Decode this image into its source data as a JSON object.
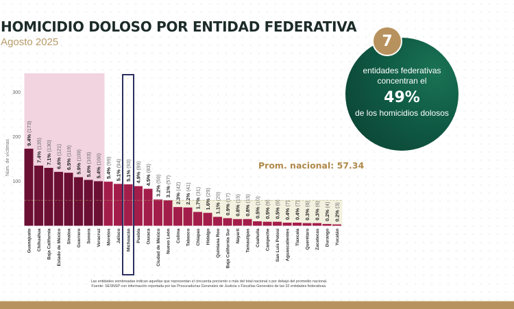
{
  "header": {
    "title": "HOMICIDIO DOLOSO POR ENTIDAD FEDERATIVA",
    "subtitle": "Agosto 2025"
  },
  "callout": {
    "count": "7",
    "line1": "entidades federativas",
    "line2": "concentran el",
    "percent": "49%",
    "line3": "de los homicidios dolosos"
  },
  "average_label": "Prom. nacional: 57.34",
  "footnotes": {
    "note": "Las entidades sombreadas indican aquellas que representan el cincuenta porciento o más del total nacional o por debajo del promedio nacional.",
    "source": "Fuente: SESNSP con información reportada por las Procuradurías Generales de Justicia o Fiscalías Generales de las 32 entidades federativas."
  },
  "colors": {
    "top_bar": "#6b0f33",
    "other_bar": "#a31d4b",
    "highlight_top": "#f2d3e0",
    "highlight_below_avg": "#f3f1df",
    "selected_outline": "#2a2f5e",
    "accent_gold": "#b8925e",
    "circle_green": "#0f5a44"
  },
  "chart_data": {
    "type": "bar",
    "title": "HOMICIDIO DOLOSO POR ENTIDAD FEDERATIVA",
    "subtitle": "Agosto 2025",
    "xlabel": "",
    "ylabel": "Núm. de víctimas",
    "ylim": [
      0,
      350
    ],
    "yticks": [
      100,
      200,
      300
    ],
    "average": 57.34,
    "average_label": "Prom. nacional: 57.34",
    "highlighted_entity": "Michoacán",
    "top_group_count": 8,
    "categories": [
      "Guanajuato",
      "Chihuahua",
      "Baja California",
      "Estado de México",
      "Sinaloa",
      "Guerrero",
      "Sonora",
      "Veracruz",
      "Morelos",
      "Jalisco",
      "Michoacán",
      "Puebla",
      "Oaxaca",
      "Ciudad de México",
      "Nuevo León",
      "Colima",
      "Tabasco",
      "Chiapas",
      "Hidalgo",
      "Quintana Roo",
      "Baja California Sur",
      "Nayarit",
      "Tamaulipas",
      "Coahuila",
      "Campeche",
      "San Luis Potosí",
      "Aguascalientes",
      "Tlaxcala",
      "Querétaro",
      "Zacatecas",
      "Durango",
      "Yucatán"
    ],
    "values": [
      173,
      135,
      130,
      121,
      119,
      109,
      103,
      100,
      99,
      94,
      93,
      89,
      83,
      59,
      57,
      42,
      41,
      31,
      29,
      20,
      17,
      15,
      15,
      10,
      9,
      9,
      7,
      7,
      6,
      6,
      4,
      3
    ],
    "percents": [
      "9.4%",
      "7.4%",
      "7.1%",
      "6.6%",
      "6.5%",
      "5.9%",
      "5.6%",
      "5.4%",
      "5.4%",
      "5.1%",
      "5.1%",
      "4.9%",
      "4.5%",
      "3.2%",
      "3.1%",
      "2.3%",
      "2.2%",
      "1.7%",
      "1.6%",
      "1.1%",
      "0.9%",
      "0.8%",
      "0.8%",
      "0.5%",
      "0.5%",
      "0.5%",
      "0.4%",
      "0.4%",
      "0.3%",
      "0.3%",
      "0.2%",
      "0.2%"
    ]
  }
}
